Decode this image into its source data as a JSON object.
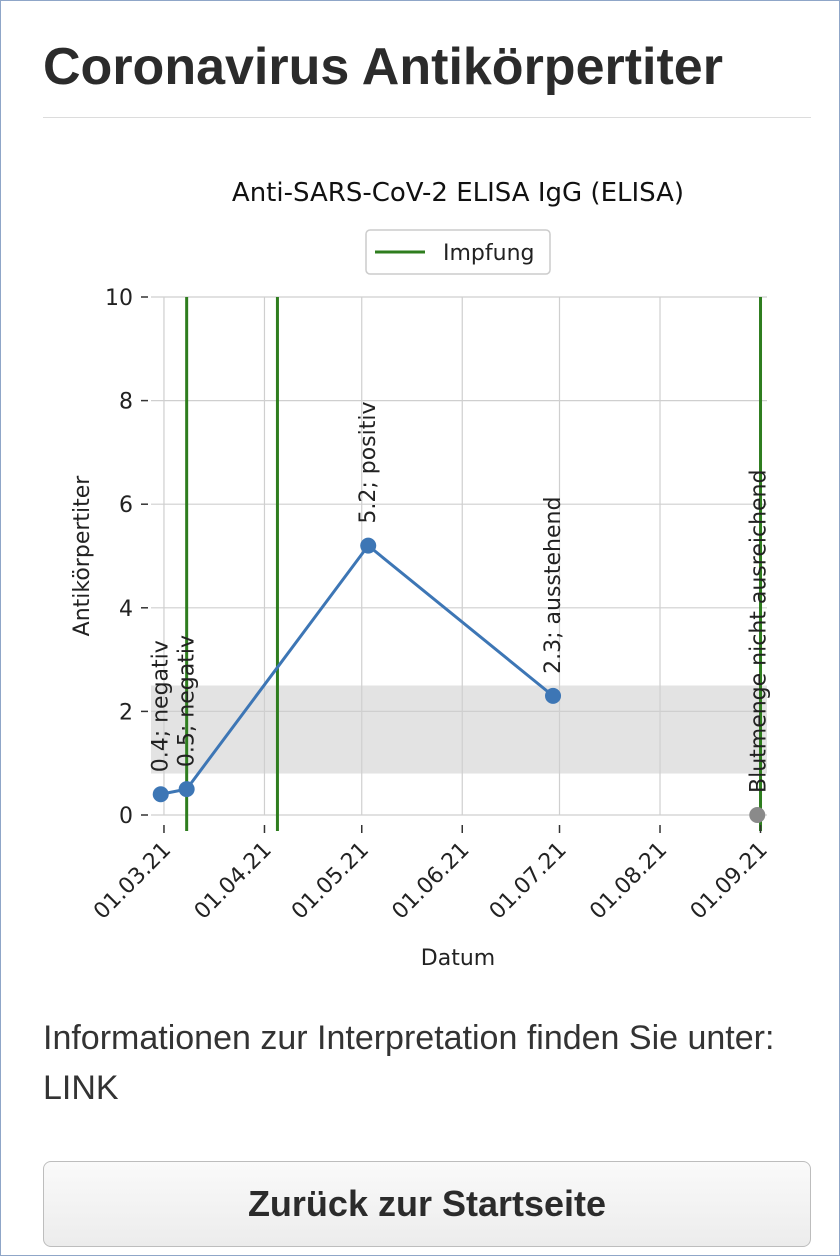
{
  "page": {
    "title": "Coronavirus Antikörpertiter",
    "info_text": "Informationen zur Interpretation finden Sie unter: LINK",
    "back_button_label": "Zurück zur Startseite"
  },
  "chart_data": {
    "type": "line",
    "title": "Anti-SARS-CoV-2 ELISA IgG (ELISA)",
    "xlabel": "Datum",
    "ylabel": "Antikörpertiter",
    "ylim": [
      0,
      10
    ],
    "yticks": [
      0,
      2,
      4,
      6,
      8,
      10
    ],
    "xlim": [
      "2021-02-25",
      "2021-09-03"
    ],
    "xticks": [
      {
        "date": "2021-03-01",
        "label": "01.03.21"
      },
      {
        "date": "2021-04-01",
        "label": "01.04.21"
      },
      {
        "date": "2021-05-01",
        "label": "01.05.21"
      },
      {
        "date": "2021-06-01",
        "label": "01.06.21"
      },
      {
        "date": "2021-07-01",
        "label": "01.07.21"
      },
      {
        "date": "2021-08-01",
        "label": "01.08.21"
      },
      {
        "date": "2021-09-01",
        "label": "01.09.21"
      }
    ],
    "grid": true,
    "legend": {
      "position": "top-center",
      "entries": [
        "Impfung"
      ]
    },
    "reference_band": {
      "y_low": 0.8,
      "y_high": 2.5,
      "color": "#e3e3e3"
    },
    "series_color": "#3d76b5",
    "vaccination_color": "#2e7d1e",
    "missing_color": "#8a8a8a",
    "points": [
      {
        "date": "2021-02-28",
        "y": 0.4,
        "label": "0.4; negativ"
      },
      {
        "date": "2021-03-08",
        "y": 0.5,
        "label": "0.5; negativ"
      },
      {
        "date": "2021-05-03",
        "y": 5.2,
        "label": "5.2; positiv"
      },
      {
        "date": "2021-06-29",
        "y": 2.3,
        "label": "2.3; ausstehend"
      }
    ],
    "missing_point": {
      "date": "2021-08-31",
      "y": 0,
      "label": "Blutmenge nicht ausreichend"
    },
    "vaccinations": [
      {
        "date": "2021-03-08",
        "label": "Impfung"
      },
      {
        "date": "2021-04-05",
        "label": "Impfung"
      },
      {
        "date": "2021-09-01",
        "label": "Impfung"
      }
    ]
  }
}
